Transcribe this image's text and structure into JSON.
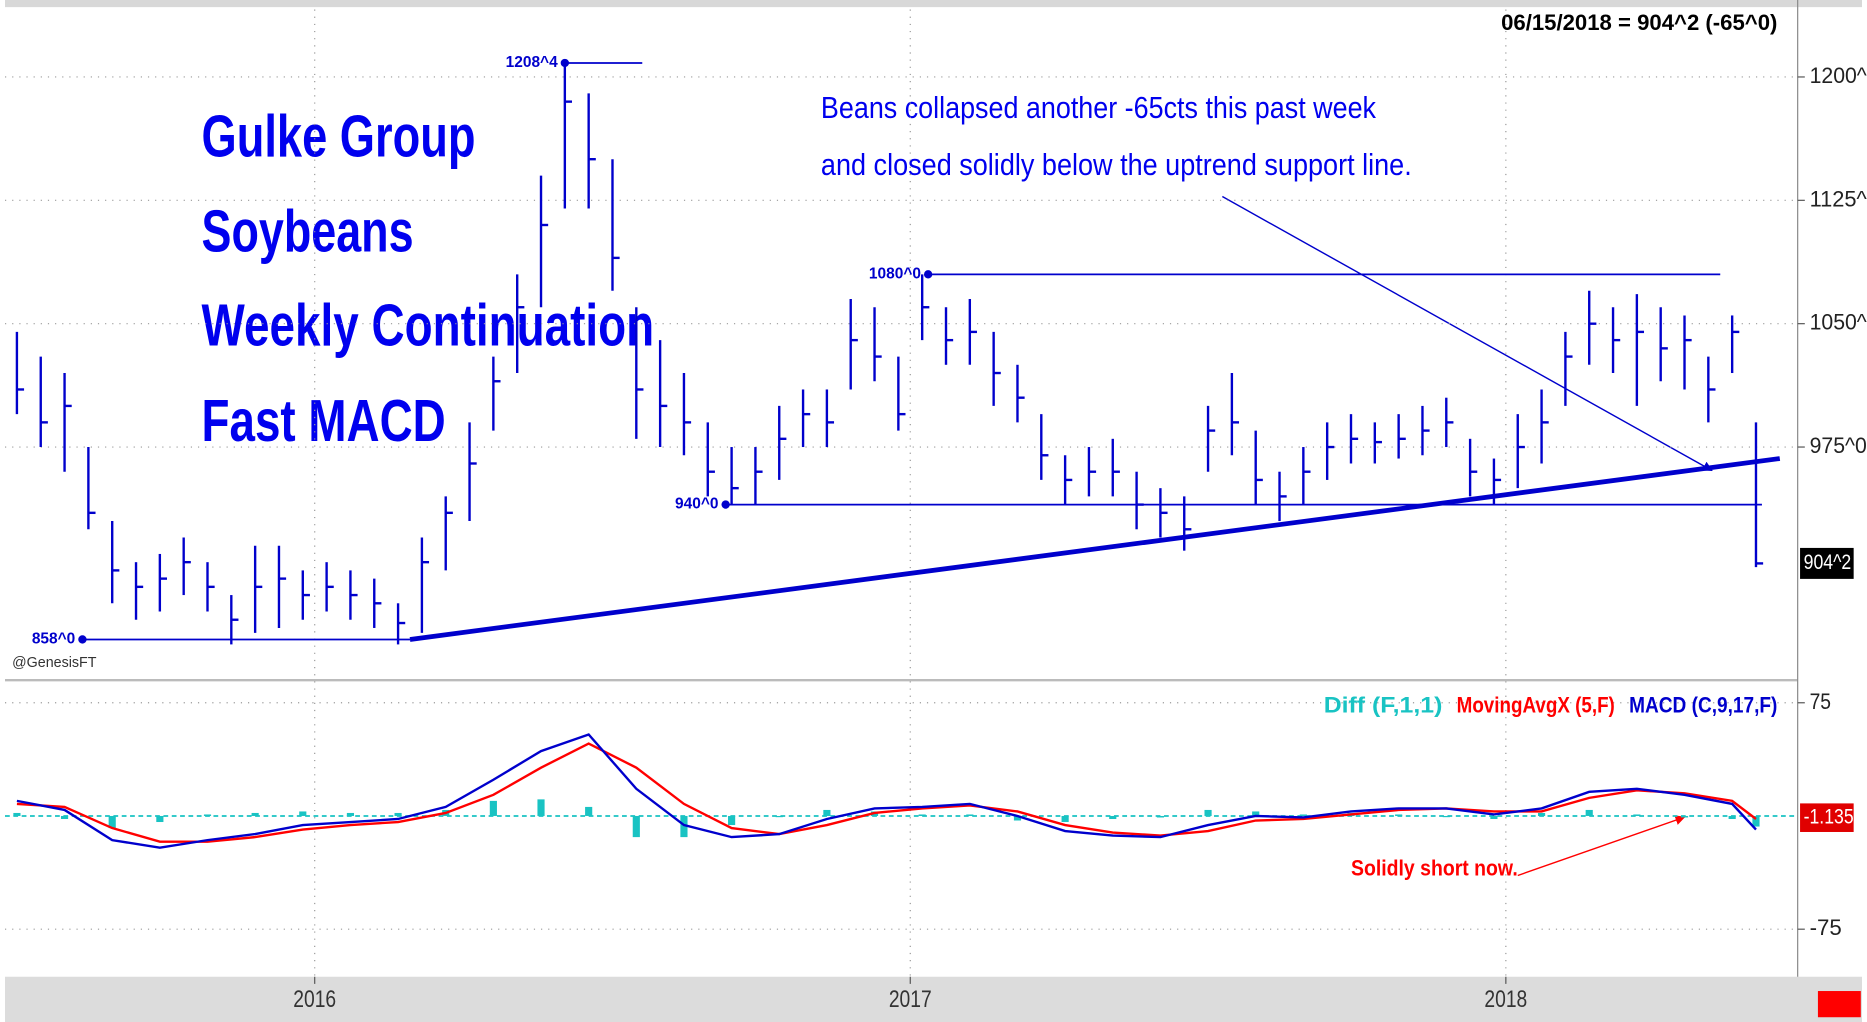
{
  "chart_data": [
    {
      "type": "ohlc",
      "title": [
        "Gulke Group",
        "Soybeans",
        "Weekly Continuation",
        "Fast MACD"
      ],
      "header": "06/15/2018 = 904^2 (-65^0)",
      "credit": "@GenesisFT",
      "annotation": [
        "Beans collapsed another -65cts this past week",
        "and closed solidly below the uptrend support line."
      ],
      "color": "#0000cc",
      "x": [
        2015.5,
        2015.54,
        2015.58,
        2015.62,
        2015.66,
        2015.7,
        2015.74,
        2015.78,
        2015.82,
        2015.86,
        2015.9,
        2015.94,
        2015.98,
        2016.02,
        2016.06,
        2016.1,
        2016.14,
        2016.18,
        2016.22,
        2016.26,
        2016.3,
        2016.34,
        2016.38,
        2016.42,
        2016.46,
        2016.5,
        2016.54,
        2016.58,
        2016.62,
        2016.66,
        2016.7,
        2016.74,
        2016.78,
        2016.82,
        2016.86,
        2016.9,
        2016.94,
        2016.98,
        2017.02,
        2017.06,
        2017.1,
        2017.14,
        2017.18,
        2017.22,
        2017.26,
        2017.3,
        2017.34,
        2017.38,
        2017.42,
        2017.46,
        2017.5,
        2017.54,
        2017.58,
        2017.62,
        2017.66,
        2017.7,
        2017.74,
        2017.78,
        2017.82,
        2017.86,
        2017.9,
        2017.94,
        2017.98,
        2018.02,
        2018.06,
        2018.1,
        2018.14,
        2018.18,
        2018.22,
        2018.26,
        2018.3,
        2018.34,
        2018.38,
        2018.42
      ],
      "high": [
        1045,
        1030,
        1020,
        975,
        930,
        905,
        910,
        920,
        905,
        885,
        915,
        915,
        900,
        905,
        900,
        895,
        880,
        920,
        945,
        990,
        1030,
        1080,
        1140,
        1208.5,
        1190,
        1150,
        1060,
        1040,
        1020,
        990,
        975,
        975,
        1000,
        1010,
        1010,
        1065,
        1060,
        1030,
        1080,
        1060,
        1065,
        1045,
        1025,
        995,
        970,
        975,
        980,
        960,
        950,
        945,
        1000,
        1020,
        985,
        960,
        975,
        990,
        995,
        990,
        995,
        1000,
        1005,
        980,
        968,
        995,
        1010,
        1045,
        1070,
        1060,
        1068,
        1060,
        1055,
        1030,
        1055,
        990
      ],
      "low": [
        995,
        975,
        960,
        925,
        880,
        870,
        875,
        885,
        875,
        855,
        862,
        865,
        870,
        875,
        870,
        865,
        855,
        862,
        900,
        930,
        985,
        1020,
        1060,
        1120,
        1120,
        1070,
        980,
        975,
        970,
        945,
        940,
        940,
        955,
        975,
        975,
        1010,
        1015,
        985,
        1040,
        1025,
        1025,
        1000,
        990,
        955,
        940,
        945,
        945,
        925,
        920,
        912,
        960,
        970,
        940,
        930,
        940,
        955,
        965,
        965,
        968,
        970,
        975,
        945,
        940,
        950,
        965,
        1000,
        1025,
        1020,
        1000,
        1015,
        1010,
        990,
        1020,
        902
      ],
      "close": [
        1010,
        990,
        1000,
        935,
        900,
        890,
        895,
        905,
        890,
        870,
        890,
        895,
        885,
        890,
        885,
        880,
        868,
        905,
        935,
        965,
        1015,
        1060,
        1110,
        1185,
        1150,
        1090,
        1010,
        1000,
        990,
        960,
        950,
        960,
        980,
        995,
        990,
        1040,
        1030,
        995,
        1060,
        1040,
        1045,
        1020,
        1005,
        970,
        955,
        960,
        960,
        940,
        935,
        925,
        985,
        990,
        955,
        945,
        960,
        975,
        980,
        978,
        980,
        985,
        990,
        960,
        955,
        975,
        990,
        1030,
        1050,
        1040,
        1045,
        1035,
        1040,
        1010,
        1045,
        904.25
      ],
      "last_label": {
        "value": 904.25,
        "label": "904^2"
      },
      "levels": [
        {
          "value": 1208.5,
          "label": "1208^4",
          "x": [
            2016.42,
            2016.55
          ]
        },
        {
          "value": 1080,
          "label": "1080^0",
          "x": [
            2017.03,
            2018.36
          ]
        },
        {
          "value": 940,
          "label": "940^0",
          "x": [
            2016.69,
            2018.43
          ]
        },
        {
          "value": 858,
          "label": "858^0",
          "x": [
            2015.61,
            2016.16
          ]
        }
      ],
      "trendline": {
        "x": [
          2016.16,
          2018.46
        ],
        "y": [
          858,
          968
        ]
      },
      "xlim": [
        2015.48,
        2018.49
      ],
      "xticks": [
        2016,
        2017,
        2018
      ],
      "ylim": [
        834,
        1241
      ],
      "yticks": [
        {
          "value": 1200,
          "label": "1200^"
        },
        {
          "value": 1125,
          "label": "1125^"
        },
        {
          "value": 1050,
          "label": "1050^"
        },
        {
          "value": 975,
          "label": "975^0"
        }
      ],
      "grid": true
    },
    {
      "type": "macd",
      "annotation": "Solidly short now.",
      "x": [
        2015.5,
        2015.58,
        2015.66,
        2015.74,
        2015.82,
        2015.9,
        2015.98,
        2016.06,
        2016.14,
        2016.22,
        2016.3,
        2016.38,
        2016.46,
        2016.54,
        2016.62,
        2016.7,
        2016.78,
        2016.86,
        2016.94,
        2017.02,
        2017.1,
        2017.18,
        2017.26,
        2017.34,
        2017.42,
        2017.5,
        2017.58,
        2017.66,
        2017.74,
        2017.82,
        2017.9,
        2017.98,
        2018.06,
        2018.14,
        2018.22,
        2018.3,
        2018.38,
        2018.42
      ],
      "series": [
        {
          "name": "Diff (F,1,1)",
          "color": "#19c3c3",
          "kind": "bar",
          "values": [
            2,
            -2,
            -8,
            -4,
            1,
            2,
            3,
            2,
            2,
            4,
            10,
            11,
            6,
            -14,
            -14,
            -6,
            0,
            4,
            3,
            1,
            1,
            -3,
            -4,
            -2,
            -1,
            4,
            3,
            1,
            2,
            1,
            0,
            -2,
            2,
            4,
            1,
            -1,
            -2,
            -7
          ]
        },
        {
          "name": "MovingAvgX (5,F)",
          "color": "#ff0000",
          "kind": "line",
          "values": [
            8,
            6,
            -8,
            -17,
            -17,
            -14,
            -9,
            -6,
            -4,
            2,
            14,
            32,
            48,
            32,
            8,
            -8,
            -12,
            -6,
            2,
            5,
            7,
            3,
            -6,
            -11,
            -13,
            -10,
            -3,
            -2,
            1,
            4,
            5,
            3,
            3,
            12,
            17,
            15,
            10,
            -2
          ]
        },
        {
          "name": "MACD (C,9,17,F)",
          "color": "#0000cc",
          "kind": "line",
          "values": [
            10,
            4,
            -16,
            -21,
            -16,
            -12,
            -6,
            -4,
            -2,
            6,
            24,
            43,
            54,
            18,
            -6,
            -14,
            -12,
            -2,
            5,
            6,
            8,
            0,
            -10,
            -13,
            -14,
            -6,
            0,
            -1,
            3,
            5,
            5,
            1,
            5,
            16,
            18,
            14,
            8,
            -9
          ]
        }
      ],
      "last_label": {
        "value": -1.135,
        "label": "-1.135"
      },
      "xlim": [
        2015.48,
        2018.49
      ],
      "ylim": [
        -106.5,
        89.2
      ],
      "yticks": [
        75,
        -75
      ],
      "grid": true
    }
  ]
}
